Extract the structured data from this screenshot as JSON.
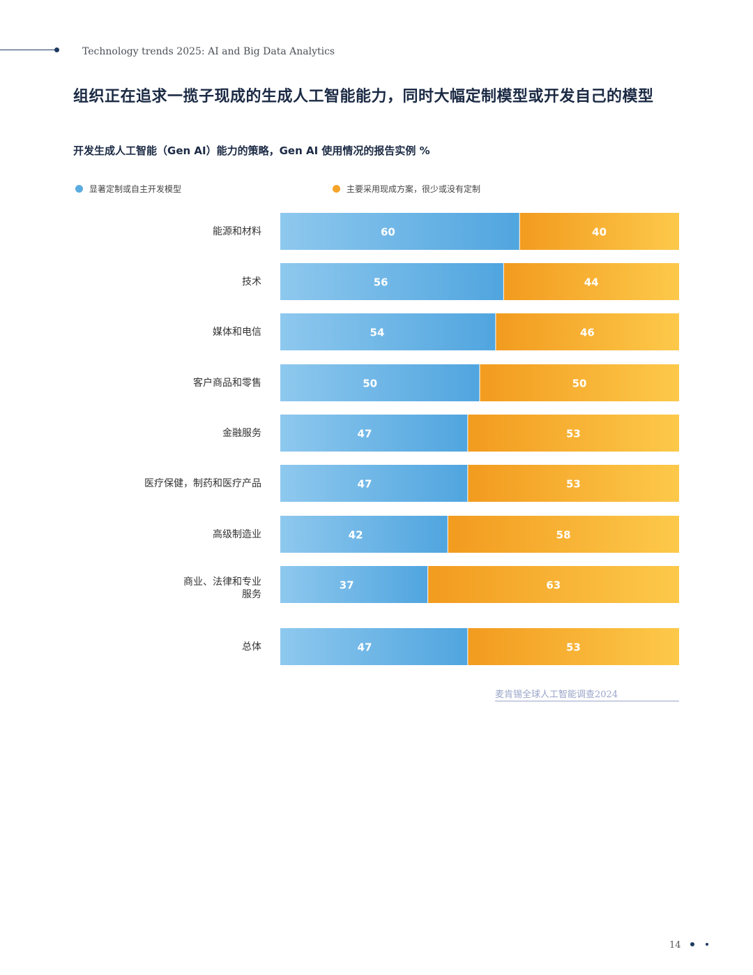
{
  "header": {
    "running_title": "Technology trends 2025: AI and Big Data Analytics"
  },
  "headline": "组织正在追求一揽子现成的生成人工智能能力，同时大幅定制模型或开发自己的模型",
  "chart_data": {
    "type": "bar",
    "stacked": true,
    "orientation": "horizontal",
    "title": "开发生成人工智能（Gen AI）能力的策略，Gen AI 使用情况的报告实例 %",
    "categories": [
      "能源和材料",
      "技术",
      "媒体和电信",
      "客户商品和零售",
      "金融服务",
      "医疗保健，制药和医疗产品",
      "高级制造业",
      "商业、法律和专业服务",
      "总体"
    ],
    "series": [
      {
        "name": "显著定制或自主开发模型",
        "color": "#5aabe0",
        "values": [
          60,
          56,
          54,
          50,
          47,
          47,
          42,
          37,
          47
        ]
      },
      {
        "name": "主要采用现成方案，很少或没有定制",
        "color": "#f5a42a",
        "values": [
          40,
          44,
          46,
          50,
          53,
          53,
          58,
          63,
          53
        ]
      }
    ],
    "xlim": [
      0,
      100
    ],
    "legend": "top"
  },
  "source": "麦肯锡全球人工智能调查2024",
  "page_number": "14"
}
